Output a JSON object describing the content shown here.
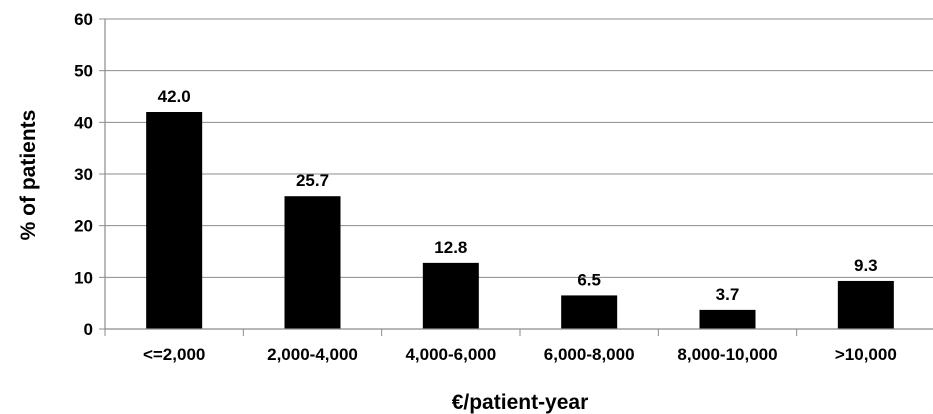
{
  "chart_data": {
    "type": "bar",
    "categories": [
      "<=2,000",
      "2,000-4,000",
      "4,000-6,000",
      "6,000-8,000",
      "8,000-10,000",
      ">10,000"
    ],
    "values": [
      42.0,
      25.7,
      12.8,
      6.5,
      3.7,
      9.3
    ],
    "data_labels": [
      "42.0",
      "25.7",
      "12.8",
      "6.5",
      "3.7",
      "9.3"
    ],
    "xlabel": "€/patient-year",
    "ylabel": "% of patients",
    "ylim": [
      0,
      60
    ],
    "yticks": [
      "0",
      "10",
      "20",
      "30",
      "40",
      "50",
      "60"
    ],
    "grid": true,
    "legend": "none",
    "colors": {
      "bar": "#000000",
      "grid": "#8c8c8c",
      "axis": "#8c8c8c",
      "text": "#000000"
    }
  }
}
